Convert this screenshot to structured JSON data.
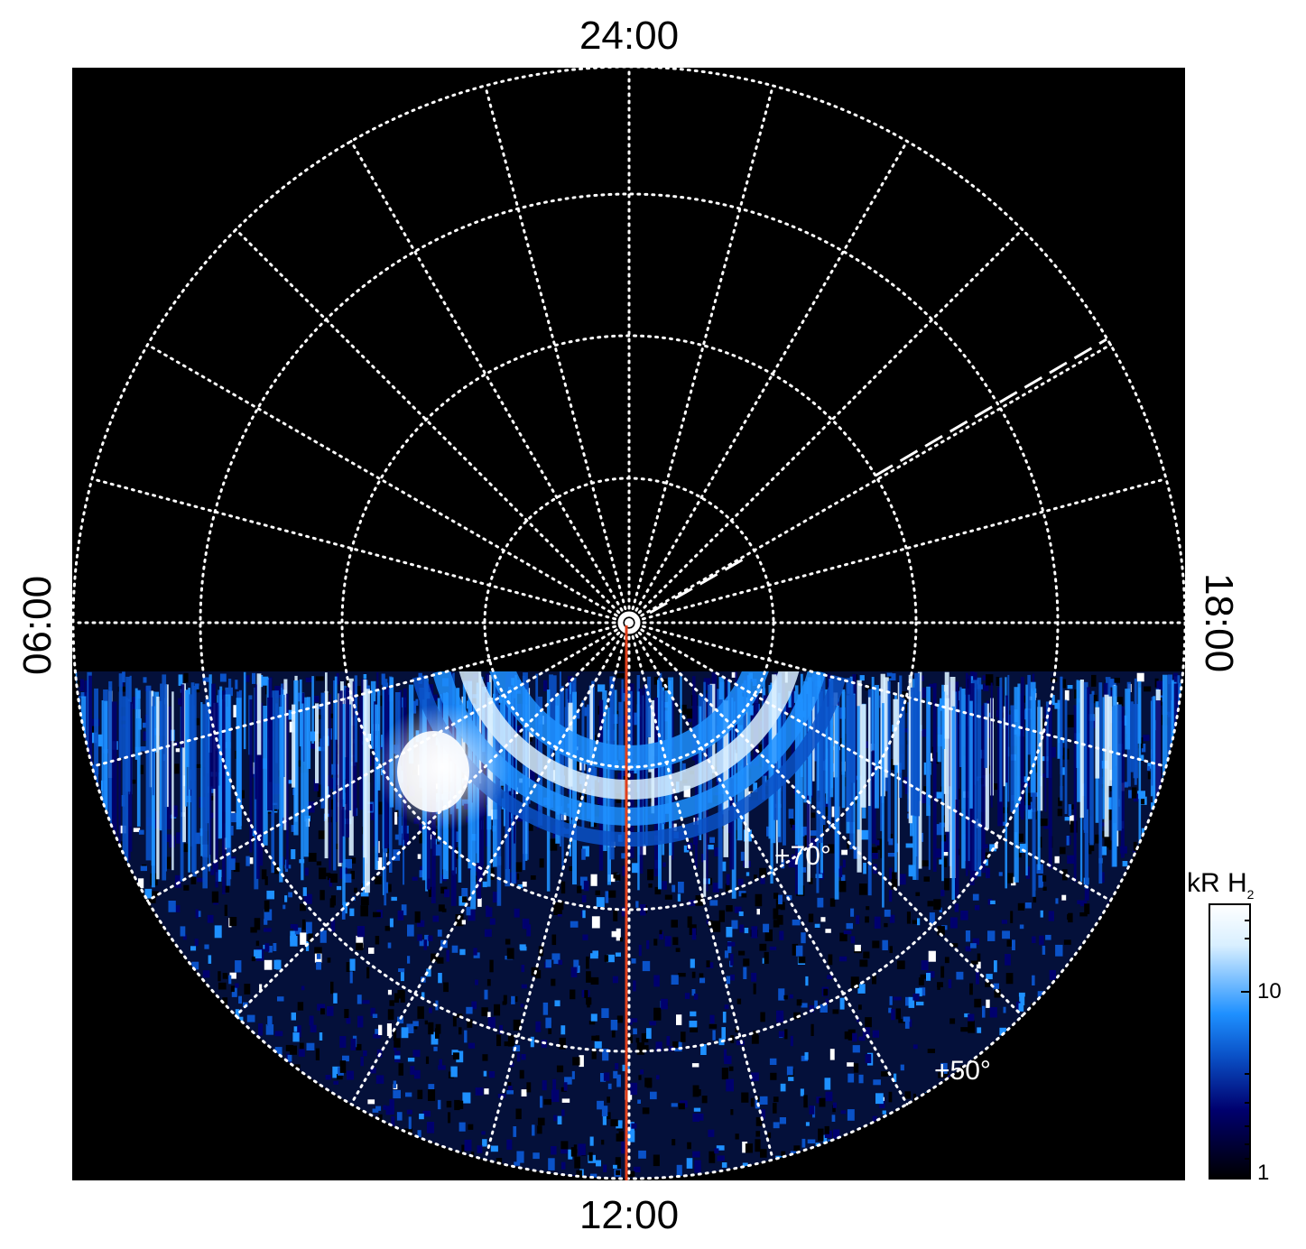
{
  "axis_labels": {
    "top": "24:00",
    "bottom": "12:00",
    "left": "06:00",
    "right": "18:00"
  },
  "latitude_labels": [
    "+70°",
    "+50°"
  ],
  "colorbar": {
    "title": "kR H",
    "title_subscript": "2",
    "ticks": [
      "10",
      "1"
    ],
    "scale": "log",
    "colors": [
      "#000000",
      "#00006e",
      "#0a52c8",
      "#1e90ff",
      "#d8efff",
      "#ffffff"
    ]
  },
  "colors": {
    "background": "#000000",
    "grid": "#ffffff",
    "meridian_line": "#e0401c"
  }
}
